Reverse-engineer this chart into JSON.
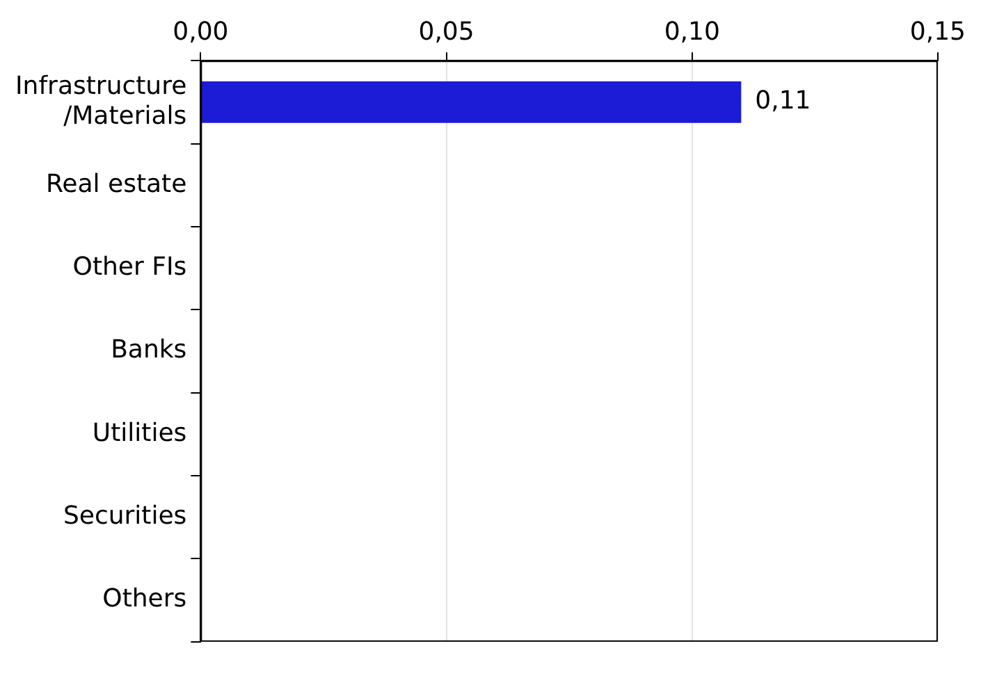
{
  "chart_data": {
    "type": "bar",
    "orientation": "horizontal",
    "categories": [
      "Infrastructure\n/Materials",
      "Real estate",
      "Other FIs",
      "Banks",
      "Utilities",
      "Securities",
      "Others"
    ],
    "values": [
      0.11,
      null,
      null,
      null,
      null,
      null,
      null
    ],
    "value_labels": [
      "0,11",
      null,
      null,
      null,
      null,
      null,
      null
    ],
    "color": "#1c1cd6",
    "xlim": [
      0,
      0.15
    ],
    "xticks": [
      {
        "value": 0,
        "label": "0,00"
      },
      {
        "value": 0.05,
        "label": "0,05"
      },
      {
        "value": 0.1,
        "label": "0,10"
      },
      {
        "value": 0.15,
        "label": "0,15"
      }
    ],
    "grid": "x",
    "legend": false
  }
}
